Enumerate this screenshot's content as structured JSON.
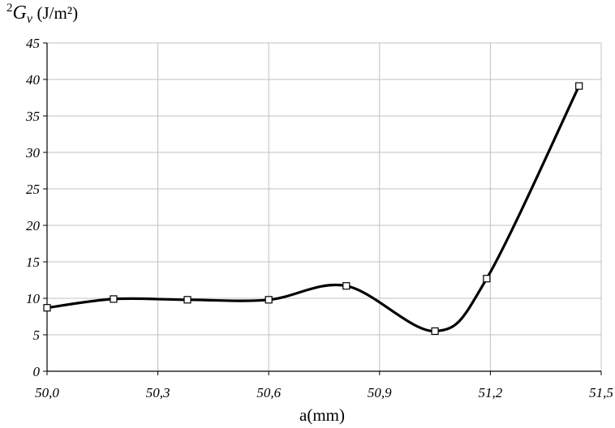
{
  "chart_data": {
    "type": "line",
    "ylabel": {
      "superscript": "2",
      "symbol": "G",
      "subscript": "v",
      "unit": "(J/m²)"
    },
    "xlabel": "a(mm)",
    "xlim": [
      50.0,
      51.5
    ],
    "ylim": [
      0,
      45
    ],
    "x_ticks": [
      50.0,
      50.3,
      50.6,
      50.9,
      51.2,
      51.5
    ],
    "x_tick_labels": [
      "50,0",
      "50,3",
      "50,6",
      "50,9",
      "51,2",
      "51,5"
    ],
    "y_ticks": [
      0,
      5,
      10,
      15,
      20,
      25,
      30,
      35,
      40,
      45
    ],
    "y_tick_labels": [
      "0",
      "5",
      "10",
      "15",
      "20",
      "25",
      "30",
      "35",
      "40",
      "45"
    ],
    "grid": true,
    "smooth": true,
    "marker": "square",
    "series": [
      {
        "x": [
          50.0,
          50.18,
          50.38,
          50.6,
          50.81,
          51.05,
          51.19,
          51.44
        ],
        "y": [
          8.7,
          9.9,
          9.8,
          9.8,
          11.7,
          5.5,
          12.7,
          39.1
        ]
      }
    ]
  }
}
